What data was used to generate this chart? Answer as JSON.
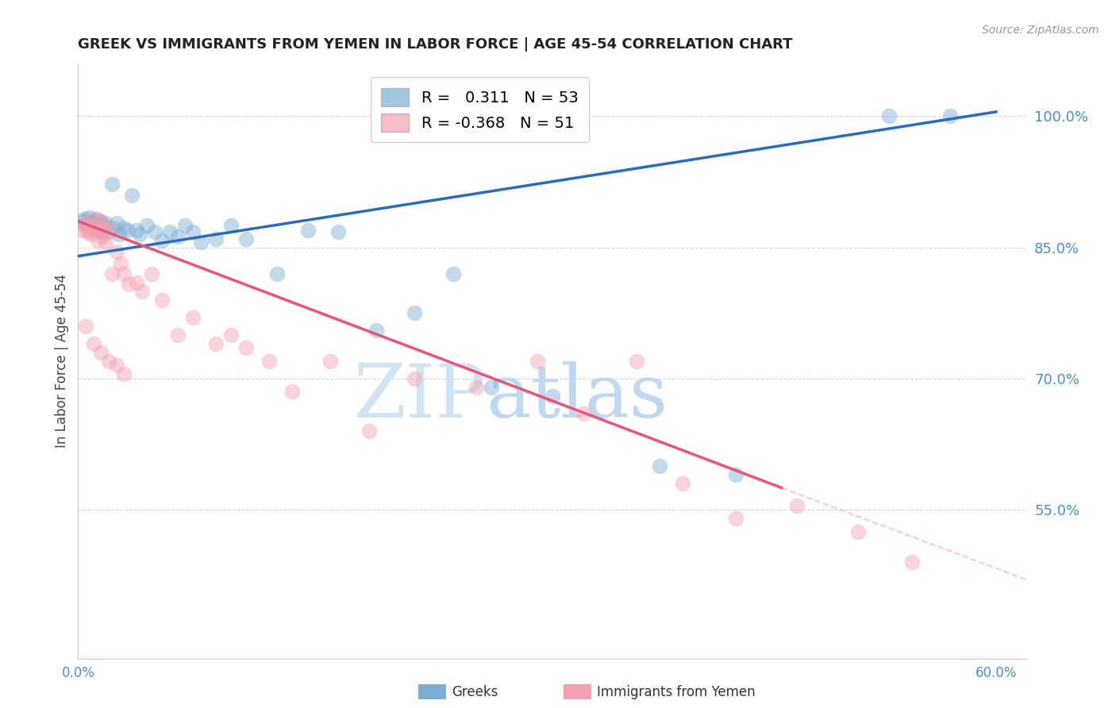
{
  "title": "GREEK VS IMMIGRANTS FROM YEMEN IN LABOR FORCE | AGE 45-54 CORRELATION CHART",
  "source": "Source: ZipAtlas.com",
  "ylabel": "In Labor Force | Age 45-54",
  "xlim": [
    0.0,
    0.62
  ],
  "ylim": [
    0.38,
    1.06
  ],
  "xticks": [
    0.0,
    0.1,
    0.2,
    0.3,
    0.4,
    0.5,
    0.6
  ],
  "xticklabels": [
    "0.0%",
    "",
    "",
    "",
    "",
    "",
    "60.0%"
  ],
  "yticks_right": [
    0.55,
    0.7,
    0.85,
    1.0
  ],
  "ytick_labels_right": [
    "55.0%",
    "70.0%",
    "85.0%",
    "100.0%"
  ],
  "blue_r": 0.311,
  "blue_n": 53,
  "pink_r": -0.368,
  "pink_n": 51,
  "blue_color": "#7BAFD4",
  "pink_color": "#F4A0B0",
  "blue_line_color": "#2B6CB8",
  "pink_line_color": "#E8547A",
  "grid_color": "#BBBBBB",
  "title_color": "#222222",
  "axis_color": "#4A90C8",
  "watermark_zip_color": "#D8E8F5",
  "watermark_atlas_color": "#C5D8F0",
  "legend_label_blue": "Greeks",
  "legend_label_pink": "Immigrants from Yemen",
  "blue_dots_x": [
    0.003,
    0.004,
    0.005,
    0.006,
    0.007,
    0.008,
    0.008,
    0.009,
    0.01,
    0.01,
    0.011,
    0.012,
    0.012,
    0.013,
    0.014,
    0.015,
    0.015,
    0.016,
    0.017,
    0.018,
    0.02,
    0.022,
    0.023,
    0.025,
    0.027,
    0.03,
    0.032,
    0.035,
    0.038,
    0.04,
    0.045,
    0.05,
    0.055,
    0.06,
    0.065,
    0.07,
    0.075,
    0.08,
    0.09,
    0.1,
    0.11,
    0.13,
    0.15,
    0.17,
    0.195,
    0.22,
    0.245,
    0.27,
    0.31,
    0.38,
    0.43,
    0.53,
    0.57
  ],
  "blue_dots_y": [
    0.88,
    0.882,
    0.876,
    0.878,
    0.884,
    0.876,
    0.878,
    0.88,
    0.872,
    0.879,
    0.875,
    0.873,
    0.882,
    0.877,
    0.87,
    0.875,
    0.88,
    0.868,
    0.875,
    0.878,
    0.868,
    0.922,
    0.872,
    0.878,
    0.865,
    0.872,
    0.87,
    0.91,
    0.87,
    0.865,
    0.875,
    0.868,
    0.858,
    0.868,
    0.862,
    0.875,
    0.868,
    0.856,
    0.86,
    0.875,
    0.86,
    0.82,
    0.87,
    0.868,
    0.755,
    0.775,
    0.82,
    0.69,
    0.68,
    0.6,
    0.59,
    1.0,
    1.0
  ],
  "pink_dots_x": [
    0.003,
    0.004,
    0.005,
    0.006,
    0.007,
    0.008,
    0.009,
    0.01,
    0.011,
    0.012,
    0.013,
    0.014,
    0.015,
    0.016,
    0.017,
    0.018,
    0.02,
    0.022,
    0.025,
    0.028,
    0.03,
    0.033,
    0.038,
    0.042,
    0.048,
    0.055,
    0.065,
    0.075,
    0.09,
    0.1,
    0.11,
    0.125,
    0.14,
    0.165,
    0.19,
    0.22,
    0.26,
    0.3,
    0.33,
    0.365,
    0.395,
    0.43,
    0.47,
    0.51,
    0.545,
    0.005,
    0.01,
    0.015,
    0.02,
    0.025,
    0.03
  ],
  "pink_dots_y": [
    0.87,
    0.875,
    0.878,
    0.868,
    0.87,
    0.865,
    0.872,
    0.882,
    0.87,
    0.875,
    0.858,
    0.868,
    0.88,
    0.862,
    0.872,
    0.856,
    0.87,
    0.82,
    0.845,
    0.832,
    0.82,
    0.808,
    0.81,
    0.8,
    0.82,
    0.79,
    0.75,
    0.77,
    0.74,
    0.75,
    0.735,
    0.72,
    0.685,
    0.72,
    0.64,
    0.7,
    0.69,
    0.72,
    0.66,
    0.72,
    0.58,
    0.54,
    0.555,
    0.525,
    0.49,
    0.76,
    0.74,
    0.73,
    0.72,
    0.715,
    0.705
  ],
  "blue_line_x": [
    0.0,
    0.6
  ],
  "blue_line_y": [
    0.84,
    1.005
  ],
  "pink_line_x": [
    0.0,
    0.46
  ],
  "pink_line_y": [
    0.88,
    0.575
  ],
  "dashed_line_x": [
    0.46,
    0.62
  ],
  "dashed_line_y": [
    0.575,
    0.47
  ]
}
